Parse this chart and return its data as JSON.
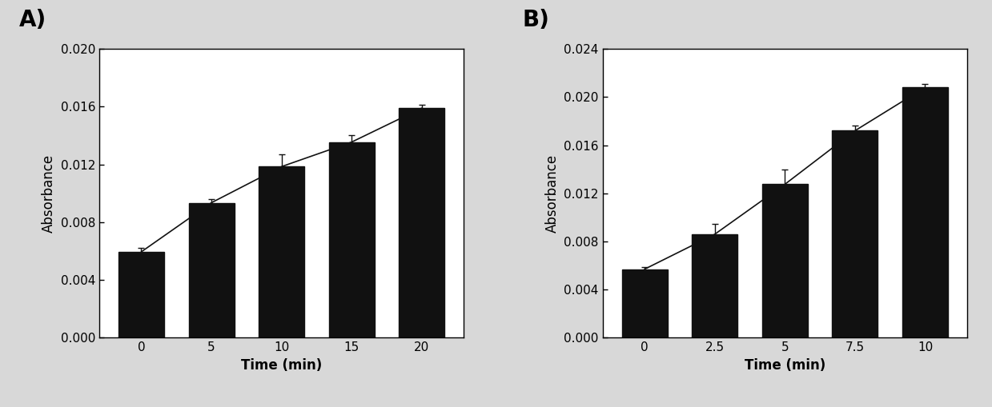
{
  "panel_A": {
    "x_labels": [
      "0",
      "5",
      "10",
      "15",
      "20"
    ],
    "bar_values": [
      0.00595,
      0.00935,
      0.01185,
      0.01355,
      0.0159
    ],
    "errors": [
      0.00025,
      0.00025,
      0.00085,
      0.00045,
      0.00025
    ],
    "ylim": [
      0.0,
      0.02
    ],
    "yticks": [
      0.0,
      0.004,
      0.008,
      0.012,
      0.016,
      0.02
    ],
    "xlabel": "Time (min)",
    "ylabel": "Absorbance",
    "panel_label": "A)",
    "bar_width": 0.65
  },
  "panel_B": {
    "x_labels": [
      "0",
      "2.5",
      "5",
      "7.5",
      "10"
    ],
    "bar_values": [
      0.0057,
      0.0086,
      0.01275,
      0.0172,
      0.0208
    ],
    "errors": [
      0.00018,
      0.00085,
      0.0012,
      0.0004,
      0.00028
    ],
    "ylim": [
      0.0,
      0.024
    ],
    "yticks": [
      0.0,
      0.004,
      0.008,
      0.012,
      0.016,
      0.02,
      0.024
    ],
    "xlabel": "Time (min)",
    "ylabel": "Absorbance",
    "panel_label": "B)",
    "bar_width": 0.65
  },
  "bar_color": "#111111",
  "line_color": "#111111",
  "error_color": "#111111",
  "figure_facecolor": "#d8d8d8",
  "axes_facecolor": "#ffffff",
  "label_fontsize": 12,
  "tick_fontsize": 11,
  "panel_label_fontsize": 20,
  "ylabel_fontsize": 12
}
